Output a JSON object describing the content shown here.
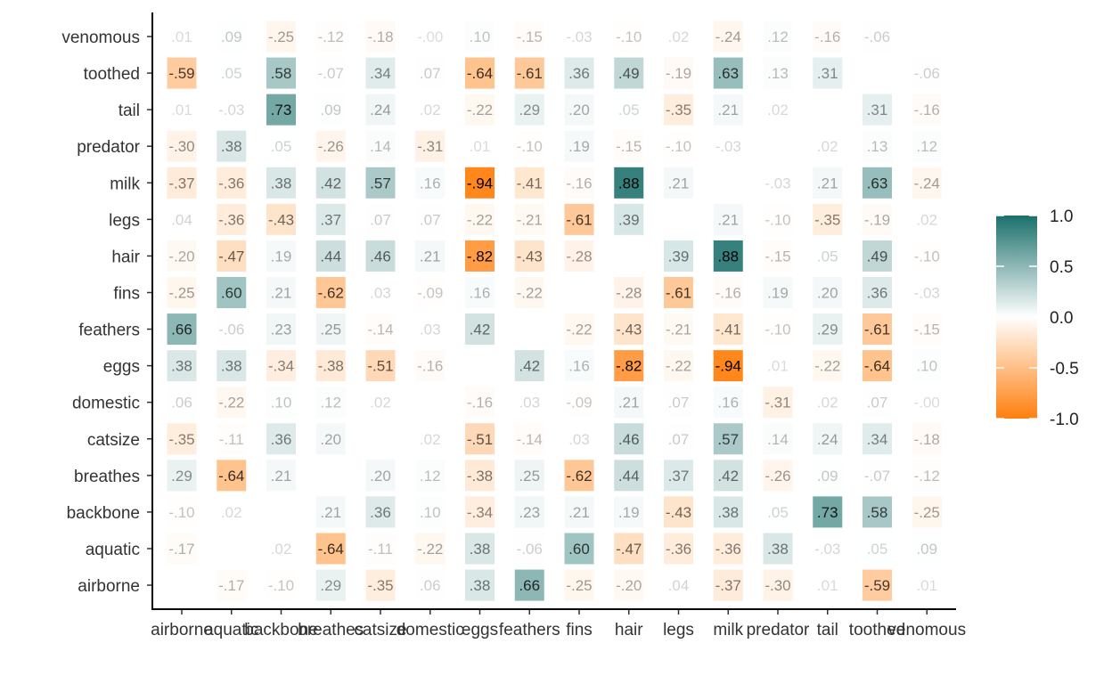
{
  "chart_data": {
    "type": "heatmap",
    "title": "",
    "xlabel": "",
    "ylabel": "",
    "x_categories": [
      "airborne",
      "aquatic",
      "backbone",
      "breathes",
      "catsize",
      "domestic",
      "eggs",
      "feathers",
      "fins",
      "hair",
      "legs",
      "milk",
      "predator",
      "tail",
      "toothed",
      "venomous"
    ],
    "y_categories": [
      "airborne",
      "aquatic",
      "backbone",
      "breathes",
      "catsize",
      "domestic",
      "eggs",
      "feathers",
      "fins",
      "hair",
      "legs",
      "milk",
      "predator",
      "tail",
      "toothed",
      "venomous"
    ],
    "values": [
      [
        null,
        -0.17,
        -0.1,
        0.29,
        -0.35,
        0.06,
        0.38,
        0.66,
        -0.25,
        -0.2,
        0.04,
        -0.37,
        -0.3,
        0.01,
        -0.59,
        0.01
      ],
      [
        -0.17,
        null,
        0.02,
        -0.64,
        -0.11,
        -0.22,
        0.38,
        -0.06,
        0.6,
        -0.47,
        -0.36,
        -0.36,
        0.38,
        -0.03,
        0.05,
        0.09
      ],
      [
        -0.1,
        0.02,
        null,
        0.21,
        0.36,
        0.1,
        -0.34,
        0.23,
        0.21,
        0.19,
        -0.43,
        0.38,
        0.05,
        0.73,
        0.58,
        -0.25
      ],
      [
        0.29,
        -0.64,
        0.21,
        null,
        0.2,
        0.12,
        -0.38,
        0.25,
        -0.62,
        0.44,
        0.37,
        0.42,
        -0.26,
        0.09,
        -0.07,
        -0.12
      ],
      [
        -0.35,
        -0.11,
        0.36,
        0.2,
        null,
        0.02,
        -0.51,
        -0.14,
        0.03,
        0.46,
        0.07,
        0.57,
        0.14,
        0.24,
        0.34,
        -0.18
      ],
      [
        0.06,
        -0.22,
        0.1,
        0.12,
        0.02,
        null,
        -0.16,
        0.03,
        -0.09,
        0.21,
        0.07,
        0.16,
        -0.31,
        0.02,
        0.07,
        -0.0
      ],
      [
        0.38,
        0.38,
        -0.34,
        -0.38,
        -0.51,
        -0.16,
        null,
        0.42,
        0.16,
        -0.82,
        -0.22,
        -0.94,
        0.01,
        -0.22,
        -0.64,
        0.1
      ],
      [
        0.66,
        -0.06,
        0.23,
        0.25,
        -0.14,
        0.03,
        0.42,
        null,
        -0.22,
        -0.43,
        -0.21,
        -0.41,
        -0.1,
        0.29,
        -0.61,
        -0.15
      ],
      [
        -0.25,
        0.6,
        0.21,
        -0.62,
        0.03,
        -0.09,
        0.16,
        -0.22,
        null,
        -0.28,
        -0.61,
        -0.16,
        0.19,
        0.2,
        0.36,
        -0.03
      ],
      [
        -0.2,
        -0.47,
        0.19,
        0.44,
        0.46,
        0.21,
        -0.82,
        -0.43,
        -0.28,
        null,
        0.39,
        0.88,
        -0.15,
        0.05,
        0.49,
        -0.1
      ],
      [
        0.04,
        -0.36,
        -0.43,
        0.37,
        0.07,
        0.07,
        -0.22,
        -0.21,
        -0.61,
        0.39,
        null,
        0.21,
        -0.1,
        -0.35,
        -0.19,
        0.02
      ],
      [
        -0.37,
        -0.36,
        0.38,
        0.42,
        0.57,
        0.16,
        -0.94,
        -0.41,
        -0.16,
        0.88,
        0.21,
        null,
        -0.03,
        0.21,
        0.63,
        -0.24
      ],
      [
        -0.3,
        0.38,
        0.05,
        -0.26,
        0.14,
        -0.31,
        0.01,
        -0.1,
        0.19,
        -0.15,
        -0.1,
        -0.03,
        null,
        0.02,
        0.13,
        0.12
      ],
      [
        0.01,
        -0.03,
        0.73,
        0.09,
        0.24,
        0.02,
        -0.22,
        0.29,
        0.2,
        0.05,
        -0.35,
        0.21,
        0.02,
        null,
        0.31,
        -0.16
      ],
      [
        -0.59,
        0.05,
        0.58,
        -0.07,
        0.34,
        0.07,
        -0.64,
        -0.61,
        0.36,
        0.49,
        -0.19,
        0.63,
        0.13,
        0.31,
        null,
        -0.06
      ],
      [
        0.01,
        0.09,
        -0.25,
        -0.12,
        -0.18,
        -0.0,
        0.1,
        -0.15,
        -0.03,
        -0.1,
        0.02,
        -0.24,
        0.12,
        -0.16,
        -0.06,
        null
      ]
    ],
    "color_scale": {
      "low": "#ff7f0e",
      "mid": "#ffffff",
      "high": "#1b706c",
      "limits": [
        -1,
        1
      ]
    },
    "legend": {
      "position": "right",
      "breaks": [
        1.0,
        0.5,
        0.0,
        -0.5,
        -1.0
      ],
      "labels": [
        "1.0",
        "0.5",
        "0.0",
        "-0.5",
        "-1.0"
      ]
    }
  }
}
